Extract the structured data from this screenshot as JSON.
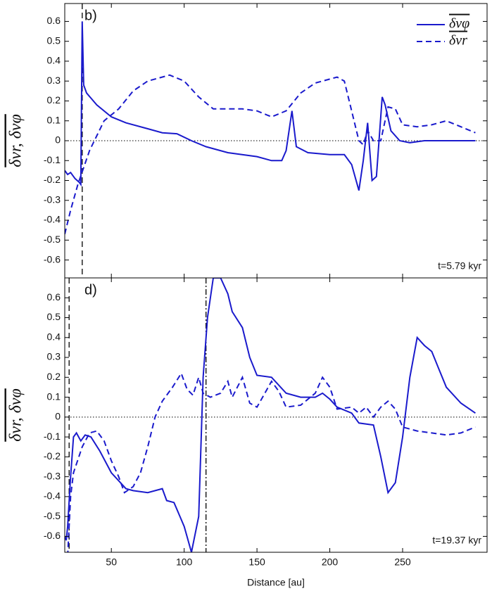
{
  "chart_data": [
    {
      "type": "line",
      "panel_label": "b)",
      "annotation": "t=5.79 kyr",
      "xlim": [
        18,
        308
      ],
      "xticks": [
        50,
        100,
        150,
        200,
        250
      ],
      "ylim": [
        -0.69,
        0.69
      ],
      "yticks": [
        0.6,
        0.5,
        0.4,
        0.3,
        0.2,
        0.1,
        0,
        -0.1,
        -0.2,
        -0.3,
        -0.4,
        -0.5,
        -0.6
      ],
      "ylabel": "δvr, δvφ",
      "legend": "upper right",
      "hlines": [
        0
      ],
      "vlines": [
        {
          "x": 30,
          "style": "dashed"
        }
      ],
      "series": [
        {
          "name": "δvφ",
          "color": "#1a1acc",
          "style": "solid",
          "x": [
            18,
            20,
            22,
            25,
            28,
            29,
            30,
            31,
            33,
            40,
            50,
            60,
            75,
            85,
            95,
            105,
            115,
            130,
            150,
            160,
            167,
            170,
            174,
            177,
            185,
            200,
            210,
            215,
            220,
            223,
            226,
            229,
            232,
            236,
            238,
            242,
            248,
            255,
            265,
            280,
            300
          ],
          "values": [
            -0.15,
            -0.17,
            -0.16,
            -0.19,
            -0.21,
            -0.22,
            0.6,
            0.28,
            0.24,
            0.18,
            0.12,
            0.09,
            0.06,
            0.04,
            0.035,
            0.0,
            -0.03,
            -0.06,
            -0.08,
            -0.1,
            -0.1,
            -0.05,
            0.15,
            -0.03,
            -0.06,
            -0.07,
            -0.07,
            -0.12,
            -0.25,
            -0.1,
            0.09,
            -0.2,
            -0.18,
            0.22,
            0.18,
            0.05,
            0.0,
            -0.01,
            0.0,
            0.0,
            0.0
          ]
        },
        {
          "name": "δvr",
          "color": "#1a1acc",
          "style": "dashed",
          "x": [
            18,
            22,
            27,
            35,
            45,
            55,
            65,
            75,
            90,
            100,
            110,
            120,
            130,
            140,
            150,
            160,
            170,
            180,
            190,
            205,
            210,
            215,
            220,
            223,
            226,
            230,
            235,
            240,
            245,
            250,
            260,
            270,
            280,
            290,
            300
          ],
          "values": [
            -0.47,
            -0.35,
            -0.22,
            -0.05,
            0.1,
            0.16,
            0.25,
            0.3,
            0.33,
            0.3,
            0.22,
            0.16,
            0.16,
            0.16,
            0.15,
            0.12,
            0.15,
            0.24,
            0.29,
            0.32,
            0.3,
            0.15,
            0.0,
            -0.02,
            0.05,
            0.0,
            0.0,
            0.17,
            0.16,
            0.08,
            0.07,
            0.08,
            0.1,
            0.07,
            0.04
          ]
        }
      ]
    },
    {
      "type": "line",
      "panel_label": "d)",
      "annotation": "t=19.37 kyr",
      "xlabel": "Distance [au]",
      "xlim": [
        18,
        308
      ],
      "xticks": [
        50,
        100,
        150,
        200,
        250
      ],
      "ylim": [
        -0.68,
        0.7
      ],
      "yticks": [
        0.6,
        0.5,
        0.4,
        0.3,
        0.2,
        0.1,
        0,
        -0.1,
        -0.2,
        -0.3,
        -0.4,
        -0.5,
        -0.6
      ],
      "ylabel": "δvr, δvφ",
      "hlines": [
        0
      ],
      "vlines": [
        {
          "x": 21,
          "style": "dashed"
        },
        {
          "x": 115,
          "style": "dashdot"
        }
      ],
      "series": [
        {
          "name": "δvφ",
          "color": "#1a1acc",
          "style": "solid",
          "x": [
            18,
            19,
            20,
            22,
            24,
            26,
            29,
            32,
            36,
            42,
            50,
            55,
            60,
            65,
            75,
            85,
            88,
            93,
            100,
            105,
            110,
            113,
            116,
            120,
            125,
            130,
            133,
            140,
            145,
            150,
            160,
            170,
            180,
            190,
            195,
            200,
            205,
            215,
            220,
            230,
            235,
            240,
            245,
            250,
            255,
            260,
            265,
            270,
            275,
            280,
            290,
            300
          ],
          "values": [
            -0.6,
            -0.62,
            -0.55,
            -0.3,
            -0.1,
            -0.08,
            -0.12,
            -0.09,
            -0.1,
            -0.17,
            -0.28,
            -0.32,
            -0.36,
            -0.37,
            -0.38,
            -0.36,
            -0.42,
            -0.43,
            -0.55,
            -0.68,
            -0.5,
            0.2,
            0.5,
            0.7,
            0.7,
            0.62,
            0.53,
            0.45,
            0.3,
            0.21,
            0.2,
            0.12,
            0.1,
            0.1,
            0.12,
            0.09,
            0.05,
            0.02,
            -0.03,
            -0.04,
            -0.2,
            -0.38,
            -0.33,
            -0.1,
            0.2,
            0.4,
            0.36,
            0.33,
            0.24,
            0.15,
            0.07,
            0.02
          ]
        },
        {
          "name": "δvr",
          "color": "#1a1acc",
          "style": "dashed",
          "x": [
            20,
            22,
            24,
            30,
            35,
            40,
            45,
            50,
            55,
            59,
            65,
            70,
            75,
            80,
            85,
            92,
            98,
            102,
            106,
            110,
            113,
            118,
            125,
            130,
            133,
            140,
            145,
            150,
            160,
            165,
            170,
            180,
            190,
            195,
            200,
            205,
            215,
            220,
            225,
            230,
            235,
            240,
            245,
            250,
            260,
            270,
            280,
            290,
            300
          ],
          "values": [
            -0.7,
            -0.4,
            -0.28,
            -0.15,
            -0.08,
            -0.07,
            -0.12,
            -0.22,
            -0.3,
            -0.38,
            -0.35,
            -0.28,
            -0.15,
            0.0,
            0.08,
            0.15,
            0.22,
            0.14,
            0.11,
            0.2,
            0.12,
            0.1,
            0.12,
            0.18,
            0.1,
            0.2,
            0.07,
            0.05,
            0.18,
            0.13,
            0.05,
            0.06,
            0.12,
            0.2,
            0.15,
            0.04,
            0.05,
            0.02,
            0.05,
            0.0,
            0.05,
            0.08,
            0.04,
            -0.05,
            -0.07,
            -0.08,
            -0.09,
            -0.08,
            -0.05
          ]
        }
      ]
    }
  ]
}
